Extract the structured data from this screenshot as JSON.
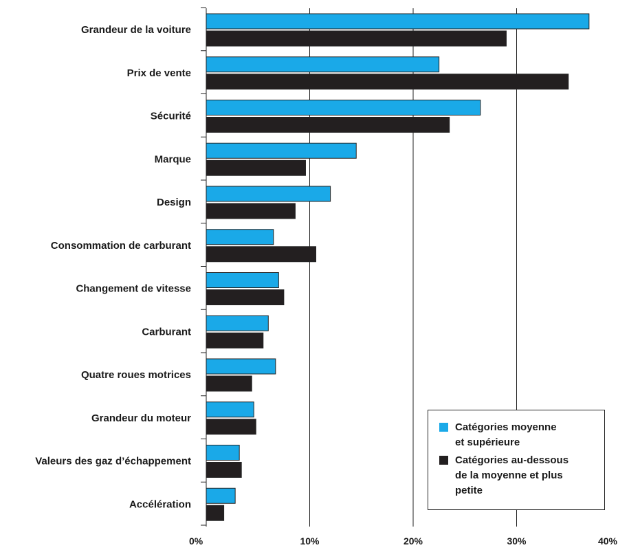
{
  "chart_data": {
    "type": "bar",
    "orientation": "horizontal",
    "categories": [
      "Grandeur de la voiture",
      "Prix de vente",
      "Sécurité",
      "Marque",
      "Design",
      "Consommation de carburant",
      "Changement de vitesse",
      "Carburant",
      "Quatre roues motrices",
      "Grandeur du moteur",
      "Valeurs des gaz d’échappement",
      "Accélération"
    ],
    "series": [
      {
        "name": "Catégories moyenne\net supérieure",
        "color": "#1aa9e8",
        "values": [
          37.0,
          22.5,
          26.5,
          14.5,
          12.0,
          6.5,
          7.0,
          6.0,
          6.7,
          4.6,
          3.2,
          2.8
        ]
      },
      {
        "name": "Catégories au-dessous\nde la moyenne et plus\npetite",
        "color": "#231f20",
        "values": [
          29.0,
          35.0,
          23.5,
          9.6,
          8.6,
          10.6,
          7.5,
          5.5,
          4.4,
          4.8,
          3.4,
          1.7
        ]
      }
    ],
    "x_ticks": [
      "0%",
      "10%",
      "20%",
      "30%",
      "40%"
    ],
    "xlim": [
      0,
      40
    ],
    "title": "",
    "xlabel": "",
    "ylabel": "",
    "grid": "vertical",
    "legend_position": "bottom-right"
  }
}
